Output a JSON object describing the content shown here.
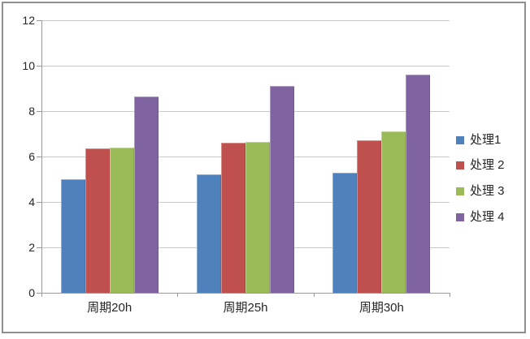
{
  "chart_data": {
    "type": "bar",
    "title": "",
    "xlabel": "",
    "ylabel": "",
    "categories": [
      "周期20h",
      "周期25h",
      "周期30h"
    ],
    "series": [
      {
        "name": "处理1",
        "color": "#4F81BD",
        "values": [
          5.0,
          5.2,
          5.3
        ]
      },
      {
        "name": "处理 2",
        "color": "#C0504D",
        "values": [
          6.35,
          6.6,
          6.7
        ]
      },
      {
        "name": "处理 3",
        "color": "#9BBB59",
        "values": [
          6.4,
          6.65,
          7.1
        ]
      },
      {
        "name": "处理 4",
        "color": "#8064A2",
        "values": [
          8.65,
          9.1,
          9.6
        ]
      }
    ],
    "ylim": [
      0,
      12
    ],
    "yticks": [
      0,
      2,
      4,
      6,
      8,
      10,
      12
    ],
    "grid": true,
    "legend_position": "right"
  },
  "colors": {
    "background": "#FFFFFF",
    "frame_border": "#8F8F8F",
    "gridline": "#C8C8C8",
    "axis": "#9A9A9A",
    "text": "#262626"
  }
}
